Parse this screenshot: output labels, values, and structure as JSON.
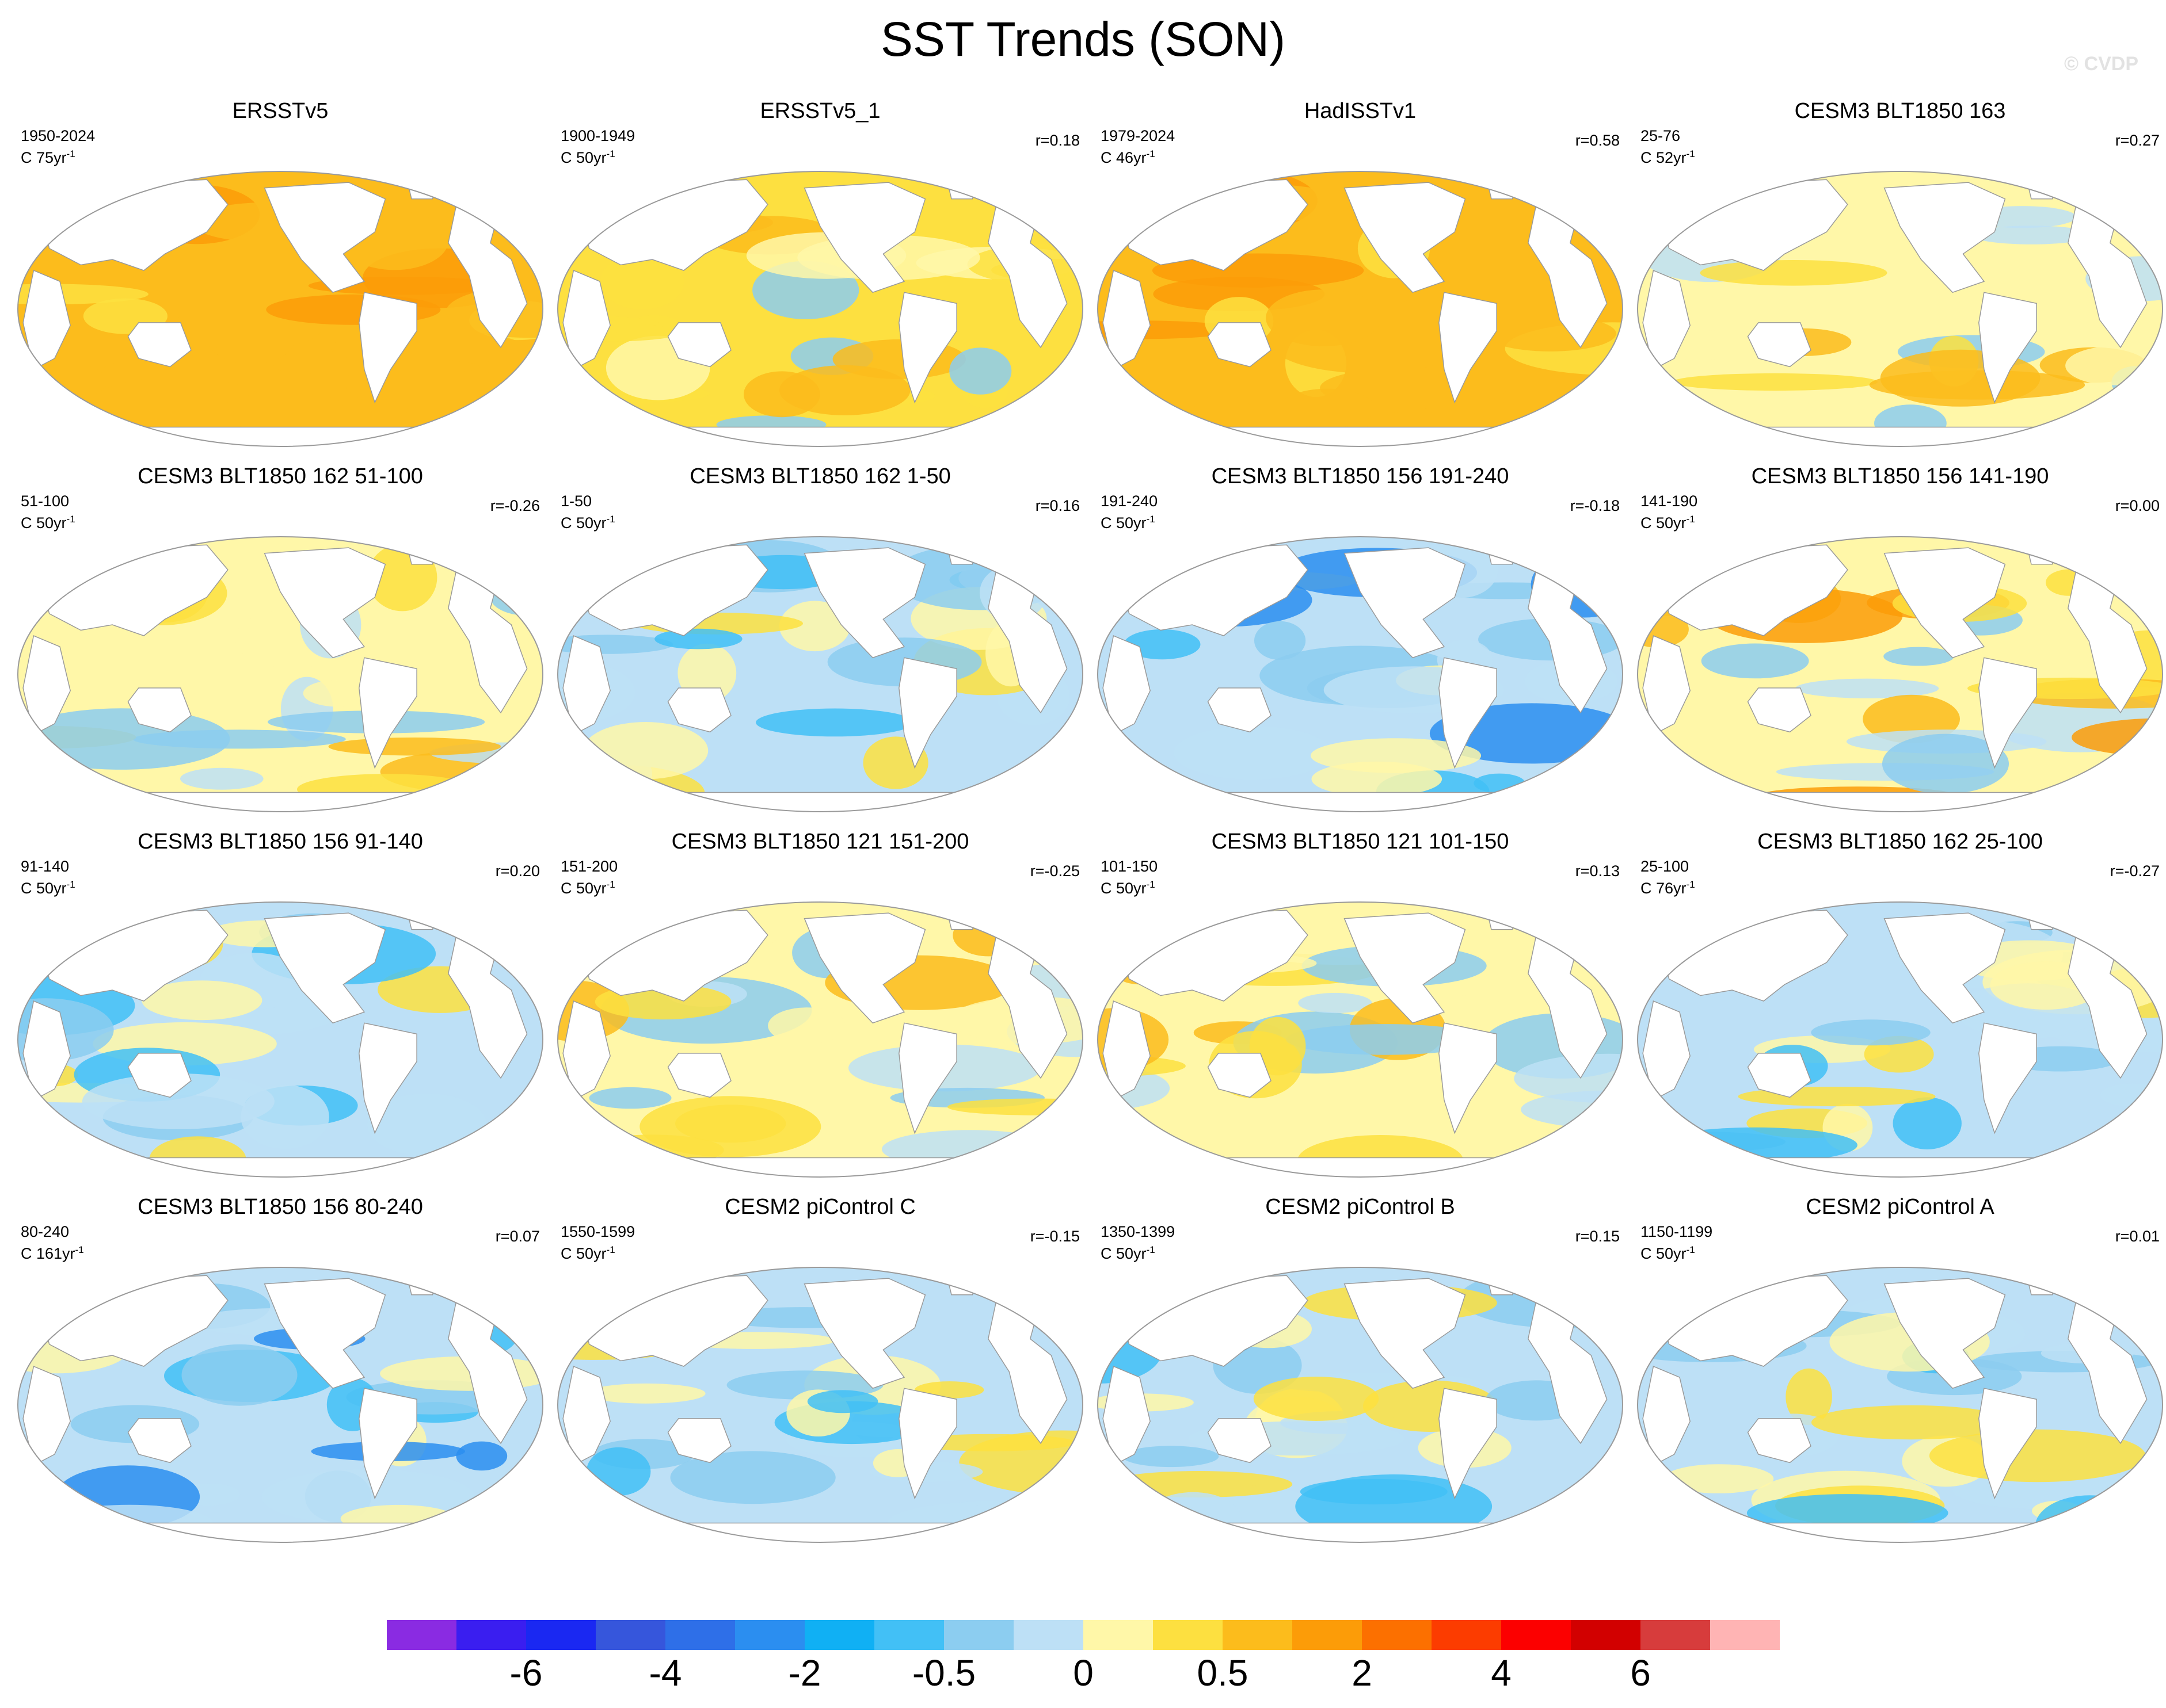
{
  "page": {
    "title": "SST Trends (SON)",
    "watermark": "© CVDP"
  },
  "chart_data": {
    "type": "heatmap",
    "projection": "Robinson global map, Pacific-centered",
    "layout": {
      "rows": 4,
      "cols": 4
    },
    "panels": [
      {
        "title": "ERSSTv5",
        "years": "1950-2024",
        "units": "C 75yr",
        "r": "",
        "pattern": "warm-strong"
      },
      {
        "title": "ERSSTv5_1",
        "years": "1900-1949",
        "units": "C 50yr",
        "r": "r=0.18",
        "pattern": "warm"
      },
      {
        "title": "HadISSTv1",
        "years": "1979-2024",
        "units": "C 46yr",
        "r": "r=0.58",
        "pattern": "warm-strong"
      },
      {
        "title": "CESM3 BLT1850 163",
        "years": "25-76",
        "units": "C 52yr",
        "r": "r=0.27",
        "pattern": "mixed-warm"
      },
      {
        "title": "CESM3 BLT1850 162 51-100",
        "years": "51-100",
        "units": "C 50yr",
        "r": "r=-0.26",
        "pattern": "mixed"
      },
      {
        "title": "CESM3 BLT1850 162 1-50",
        "years": "1-50",
        "units": "C 50yr",
        "r": "r=0.16",
        "pattern": "mixed-cool"
      },
      {
        "title": "CESM3 BLT1850 156 191-240",
        "years": "191-240",
        "units": "C 50yr",
        "r": "r=-0.18",
        "pattern": "cool"
      },
      {
        "title": "CESM3 BLT1850 156 141-190",
        "years": "141-190",
        "units": "C 50yr",
        "r": "r=0.00",
        "pattern": "warm-pacific"
      },
      {
        "title": "CESM3 BLT1850 156 91-140",
        "years": "91-140",
        "units": "C 50yr",
        "r": "r=0.20",
        "pattern": "mixed-cool"
      },
      {
        "title": "CESM3 BLT1850 121 151-200",
        "years": "151-200",
        "units": "C 50yr",
        "r": "r=-0.25",
        "pattern": "mixed"
      },
      {
        "title": "CESM3 BLT1850 121 101-150",
        "years": "101-150",
        "units": "C 50yr",
        "r": "r=0.13",
        "pattern": "mixed-warm"
      },
      {
        "title": "CESM3 BLT1850 162 25-100",
        "years": "25-100",
        "units": "C 76yr",
        "r": "r=-0.27",
        "pattern": "mixed-cool"
      },
      {
        "title": "CESM3 BLT1850 156 80-240",
        "years": "80-240",
        "units": "C 161yr",
        "r": "r=0.07",
        "pattern": "cool"
      },
      {
        "title": "CESM2 piControl C",
        "years": "1550-1599",
        "units": "C 50yr",
        "r": "r=-0.15",
        "pattern": "mixed-cool"
      },
      {
        "title": "CESM2 piControl B",
        "years": "1350-1399",
        "units": "C 50yr",
        "r": "r=0.15",
        "pattern": "mixed-cool"
      },
      {
        "title": "CESM2 piControl A",
        "years": "1150-1199",
        "units": "C 50yr",
        "r": "r=0.01",
        "pattern": "mixed-cool"
      }
    ],
    "colorbar": {
      "colors": [
        "#8a2be2",
        "#3a1ef0",
        "#1a28f2",
        "#3656dc",
        "#2e6fe8",
        "#2b8ef0",
        "#10b0f4",
        "#42c0f6",
        "#8ccdf0",
        "#bde0f6",
        "#fff7a8",
        "#fde040",
        "#fcbc1c",
        "#fc9c08",
        "#fc7000",
        "#fc3c00",
        "#fc0000",
        "#d20000",
        "#d73c3c",
        "#ffb4b4"
      ],
      "tick_labels": [
        "-6",
        "-4",
        "-2",
        "-0.5",
        "0",
        "0.5",
        "2",
        "4",
        "6"
      ],
      "tick_after_box": [
        2,
        4,
        6,
        8,
        10,
        12,
        14,
        16,
        18
      ]
    }
  }
}
